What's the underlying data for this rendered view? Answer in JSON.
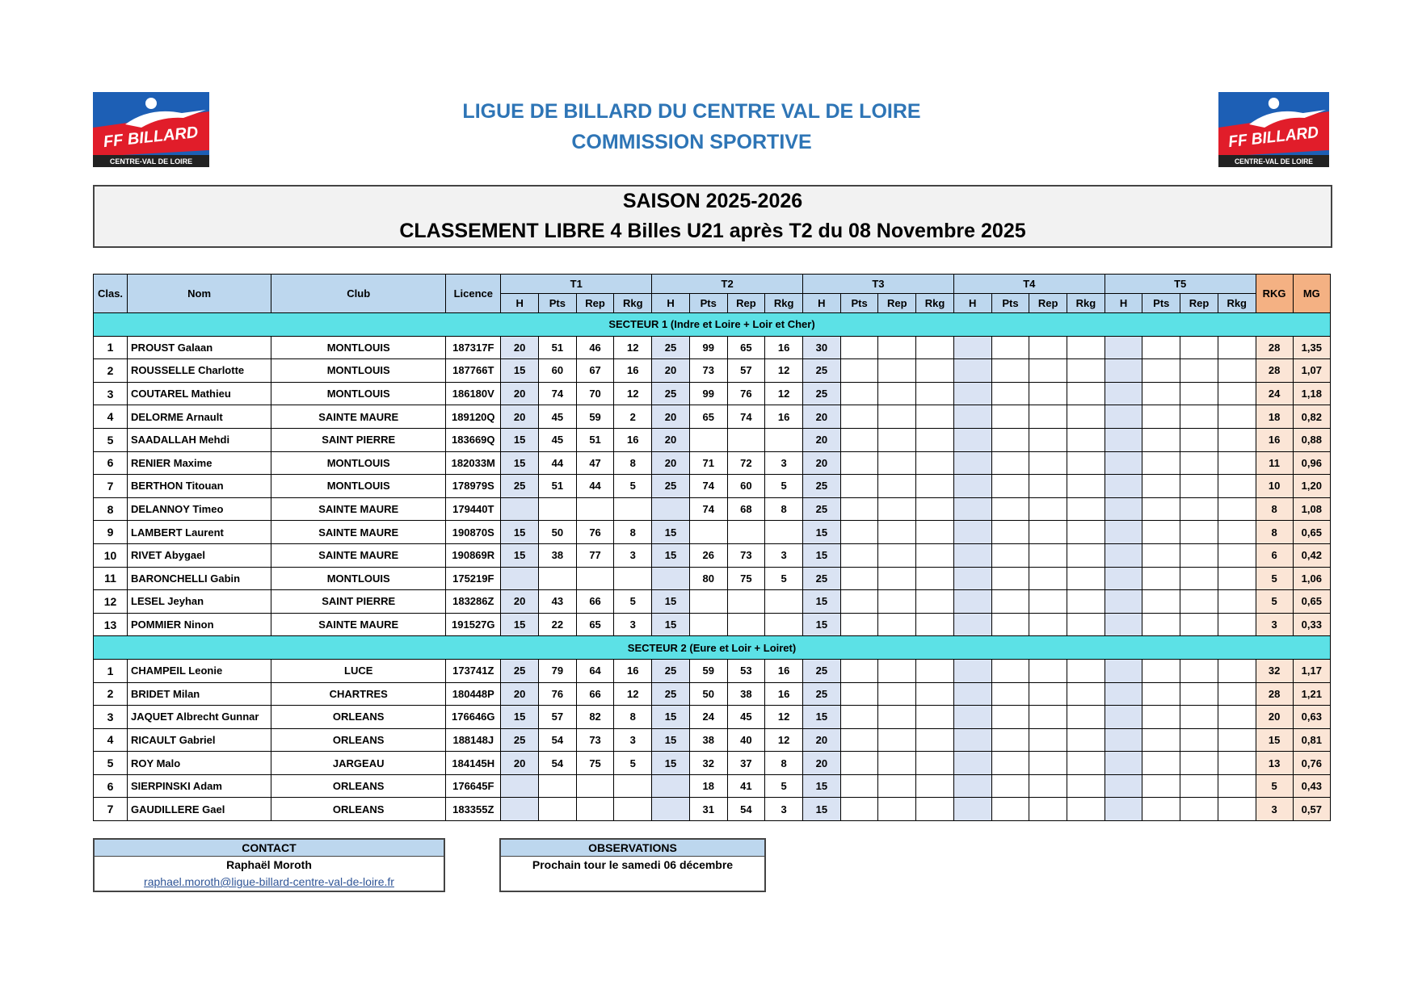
{
  "header": {
    "title": "LIGUE DE BILLARD DU CENTRE VAL DE LOIRE",
    "subtitle": "COMMISSION SPORTIVE"
  },
  "logo": {
    "brand": "FF BILLARD",
    "region": "CENTRE-VAL DE LOIRE"
  },
  "banner": {
    "season": "SAISON 2025-2026",
    "title": "CLASSEMENT LIBRE 4 Billes U21 après T2 du 08 Novembre 2025"
  },
  "table": {
    "columns": [
      "Clas.",
      "Nom",
      "Club",
      "Licence"
    ],
    "rounds": [
      "T1",
      "T2",
      "T3",
      "T4",
      "T5"
    ],
    "subcolumns": [
      "H",
      "Pts",
      "Rep",
      "Rkg"
    ],
    "totals": [
      "RKG",
      "MG"
    ],
    "sections": [
      {
        "title": "SECTEUR 1 (Indre et Loire + Loir et Cher)",
        "rows": [
          {
            "rank": 1,
            "name": "PROUST Galaan",
            "club": "MONTLOUIS",
            "licence": "187317F",
            "rounds": [
              [
                20,
                51,
                46,
                12
              ],
              [
                25,
                99,
                65,
                16
              ],
              [
                30
              ]
            ],
            "rkg": 28,
            "mg": "1,35"
          },
          {
            "rank": 2,
            "name": "ROUSSELLE Charlotte",
            "club": "MONTLOUIS",
            "licence": "187766T",
            "rounds": [
              [
                15,
                60,
                67,
                16
              ],
              [
                20,
                73,
                57,
                12
              ],
              [
                25
              ]
            ],
            "rkg": 28,
            "mg": "1,07"
          },
          {
            "rank": 3,
            "name": "COUTAREL Mathieu",
            "club": "MONTLOUIS",
            "licence": "186180V",
            "rounds": [
              [
                20,
                74,
                70,
                12
              ],
              [
                25,
                99,
                76,
                12
              ],
              [
                25
              ]
            ],
            "rkg": 24,
            "mg": "1,18"
          },
          {
            "rank": 4,
            "name": "DELORME Arnault",
            "club": "SAINTE MAURE",
            "licence": "189120Q",
            "rounds": [
              [
                20,
                45,
                59,
                2
              ],
              [
                20,
                65,
                74,
                16
              ],
              [
                20
              ]
            ],
            "rkg": 18,
            "mg": "0,82"
          },
          {
            "rank": 5,
            "name": "SAADALLAH Mehdi",
            "club": "SAINT PIERRE",
            "licence": "183669Q",
            "rounds": [
              [
                15,
                45,
                51,
                16
              ],
              [
                20
              ],
              [
                20
              ]
            ],
            "rkg": 16,
            "mg": "0,88"
          },
          {
            "rank": 6,
            "name": "RENIER Maxime",
            "club": "MONTLOUIS",
            "licence": "182033M",
            "rounds": [
              [
                15,
                44,
                47,
                8
              ],
              [
                20,
                71,
                72,
                3
              ],
              [
                20
              ]
            ],
            "rkg": 11,
            "mg": "0,96"
          },
          {
            "rank": 7,
            "name": "BERTHON Titouan",
            "club": "MONTLOUIS",
            "licence": "178979S",
            "rounds": [
              [
                25,
                51,
                44,
                5
              ],
              [
                25,
                74,
                60,
                5
              ],
              [
                25
              ]
            ],
            "rkg": 10,
            "mg": "1,20"
          },
          {
            "rank": 8,
            "name": "DELANNOY Timeo",
            "club": "SAINTE MAURE",
            "licence": "179440T",
            "rounds": [
              [
                null
              ],
              [
                null,
                74,
                68,
                8
              ],
              [
                25
              ]
            ],
            "rkg": 8,
            "mg": "1,08"
          },
          {
            "rank": 9,
            "name": "LAMBERT Laurent",
            "club": "SAINTE MAURE",
            "licence": "190870S",
            "rounds": [
              [
                15,
                50,
                76,
                8
              ],
              [
                15
              ],
              [
                15
              ]
            ],
            "rkg": 8,
            "mg": "0,65"
          },
          {
            "rank": 10,
            "name": "RIVET Abygael",
            "club": "SAINTE MAURE",
            "licence": "190869R",
            "rounds": [
              [
                15,
                38,
                77,
                3
              ],
              [
                15,
                26,
                73,
                3
              ],
              [
                15
              ]
            ],
            "rkg": 6,
            "mg": "0,42"
          },
          {
            "rank": 11,
            "name": "BARONCHELLI Gabin",
            "club": "MONTLOUIS",
            "licence": "175219F",
            "rounds": [
              [
                null
              ],
              [
                null,
                80,
                75,
                5
              ],
              [
                25
              ]
            ],
            "rkg": 5,
            "mg": "1,06"
          },
          {
            "rank": 12,
            "name": "LESEL Jeyhan",
            "club": "SAINT PIERRE",
            "licence": "183286Z",
            "rounds": [
              [
                20,
                43,
                66,
                5
              ],
              [
                15
              ],
              [
                15
              ]
            ],
            "rkg": 5,
            "mg": "0,65"
          },
          {
            "rank": 13,
            "name": "POMMIER Ninon",
            "club": "SAINTE MAURE",
            "licence": "191527G",
            "rounds": [
              [
                15,
                22,
                65,
                3
              ],
              [
                15
              ],
              [
                15
              ]
            ],
            "rkg": 3,
            "mg": "0,33"
          }
        ]
      },
      {
        "title": "SECTEUR 2 (Eure et Loir + Loiret)",
        "rows": [
          {
            "rank": 1,
            "name": "CHAMPEIL Leonie",
            "club": "LUCE",
            "licence": "173741Z",
            "rounds": [
              [
                25,
                79,
                64,
                16
              ],
              [
                25,
                59,
                53,
                16
              ],
              [
                25
              ]
            ],
            "rkg": 32,
            "mg": "1,17"
          },
          {
            "rank": 2,
            "name": "BRIDET Milan",
            "club": "CHARTRES",
            "licence": "180448P",
            "rounds": [
              [
                20,
                76,
                66,
                12
              ],
              [
                25,
                50,
                38,
                16
              ],
              [
                25
              ]
            ],
            "rkg": 28,
            "mg": "1,21"
          },
          {
            "rank": 3,
            "name": "JAQUET Albrecht Gunnar",
            "club": "ORLEANS",
            "licence": "176646G",
            "rounds": [
              [
                15,
                57,
                82,
                8
              ],
              [
                15,
                24,
                45,
                12
              ],
              [
                15
              ]
            ],
            "rkg": 20,
            "mg": "0,63"
          },
          {
            "rank": 4,
            "name": "RICAULT Gabriel",
            "club": "ORLEANS",
            "licence": "188148J",
            "rounds": [
              [
                25,
                54,
                73,
                3
              ],
              [
                15,
                38,
                40,
                12
              ],
              [
                20
              ]
            ],
            "rkg": 15,
            "mg": "0,81"
          },
          {
            "rank": 5,
            "name": "ROY Malo",
            "club": "JARGEAU",
            "licence": "184145H",
            "rounds": [
              [
                20,
                54,
                75,
                5
              ],
              [
                15,
                32,
                37,
                8
              ],
              [
                20
              ]
            ],
            "rkg": 13,
            "mg": "0,76"
          },
          {
            "rank": 6,
            "name": "SIERPINSKI Adam",
            "club": "ORLEANS",
            "licence": "176645F",
            "rounds": [
              [
                null
              ],
              [
                null,
                18,
                41,
                5
              ],
              [
                15
              ]
            ],
            "rkg": 5,
            "mg": "0,43"
          },
          {
            "rank": 7,
            "name": "GAUDILLERE Gael",
            "club": "ORLEANS",
            "licence": "183355Z",
            "rounds": [
              [
                null
              ],
              [
                null,
                31,
                54,
                3
              ],
              [
                15
              ]
            ],
            "rkg": 3,
            "mg": "0,57"
          }
        ]
      }
    ]
  },
  "contact": {
    "title": "CONTACT",
    "name": "Raphaël Moroth",
    "email": "raphael.moroth@ligue-billard-centre-val-de-loire.fr"
  },
  "observations": {
    "title": "OBSERVATIONS",
    "text": "Prochain tour le samedi 06 décembre"
  }
}
